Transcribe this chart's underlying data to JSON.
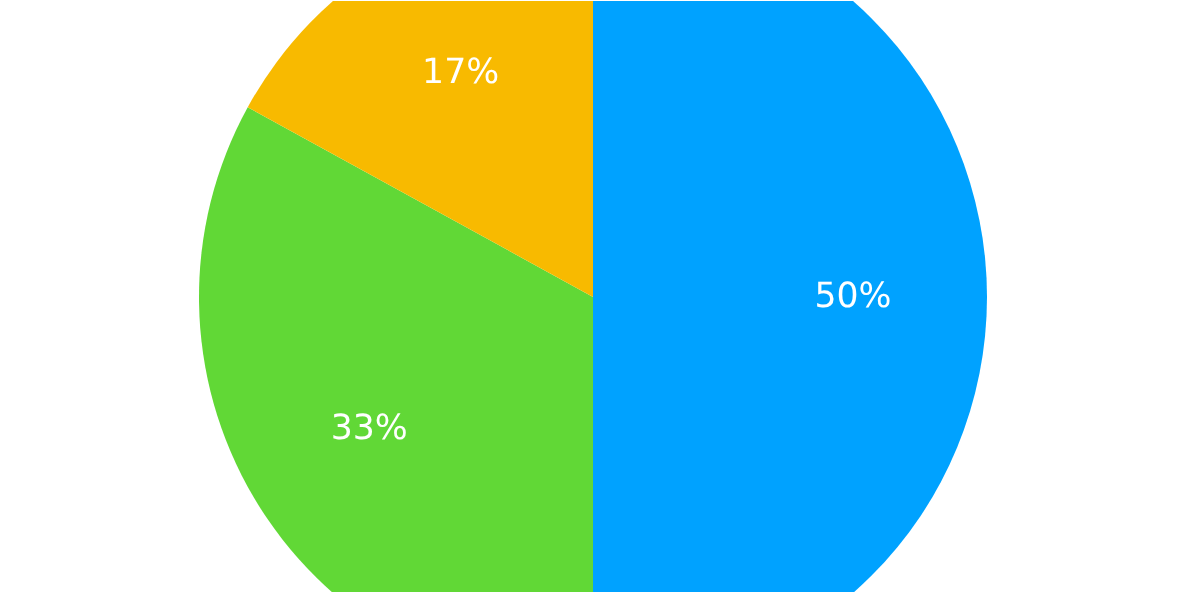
{
  "chart_data": {
    "type": "pie",
    "categories": [
      null,
      null,
      null
    ],
    "values": [
      50,
      33,
      17
    ],
    "colors": [
      "#00a2ff",
      "#61d836",
      "#f8ba00"
    ],
    "value_labels": [
      "50%",
      "33%",
      "17%"
    ]
  }
}
